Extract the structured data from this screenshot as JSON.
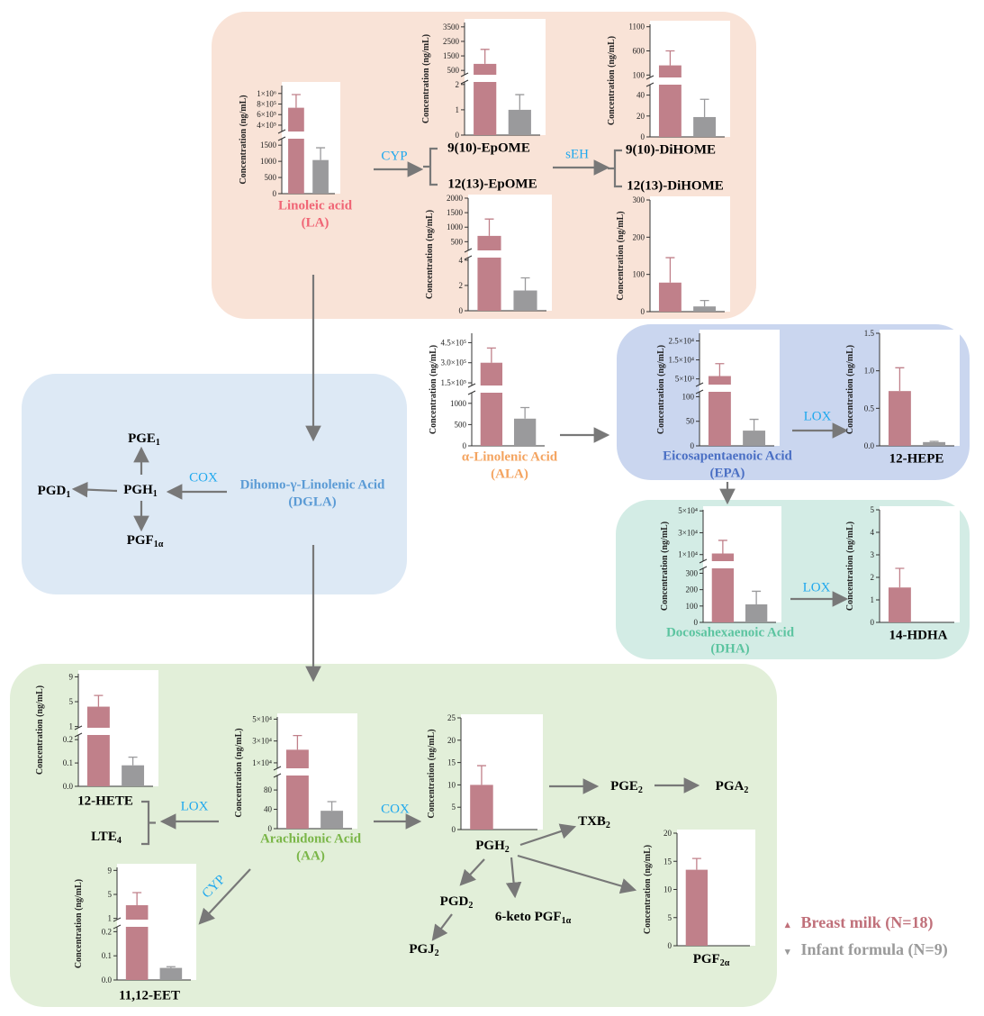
{
  "colors": {
    "breast_milk": "#c0808a",
    "infant_formula": "#9a9a9c",
    "enzyme": "#1ea8ee",
    "LA": "#f06575",
    "ALA": "#f4a460",
    "EPA": "#4a6fc4",
    "DHA": "#5cc4a0",
    "DGLA": "#5b9bd5",
    "AA": "#7ab648",
    "arrow": "#787878",
    "panel_LA": "#f9e3d7",
    "panel_DGLA": "#dde9f5",
    "panel_EPA": "#cad6ef",
    "panel_DHA": "#d3ece5",
    "panel_AA": "#e2efd9"
  },
  "labels": {
    "LA_1": "Linoleic  acid",
    "LA_2": "(LA)",
    "cyp1": "CYP",
    "epome9": "9(10)-EpOME",
    "epome12": "12(13)-EpOME",
    "seh": "sEH",
    "dihome9": "9(10)-DiHOME",
    "dihome12": "12(13)-DiHOME",
    "ALA_1": "α-Linolenic  Acid",
    "ALA_2": "(ALA)",
    "EPA_1": "Eicosapentaenoic  Acid",
    "EPA_2": "(EPA)",
    "lox1": "LOX",
    "hepe": "12-HEPE",
    "DHA_1": "Docosahexaenoic Acid",
    "DHA_2": "(DHA)",
    "lox2": "LOX",
    "hdha": "14-HDHA",
    "DGLA_1": "Dihomo-γ-Linolenic  Acid",
    "DGLA_2": "(DGLA)",
    "cox1": "COX",
    "pgh1": "PGH",
    "pgh1_sub": "1",
    "pge1": "PGE",
    "pge1_sub": "1",
    "pgd1": "PGD",
    "pgd1_sub": "1",
    "pgf1a": "PGF",
    "pgf1a_sub": "1α",
    "hete": "12-HETE",
    "lte4": "LTE",
    "lte4_sub": "4",
    "lox3": "LOX",
    "AA_1": "Arachidonic  Acid",
    "AA_2": "(AA)",
    "cox2": "COX",
    "cyp2": "CYP",
    "eet": "11,12-EET",
    "pgh2": "PGH",
    "pgh2_sub": "2",
    "pge2": "PGE",
    "pge2_sub": "2",
    "pga2": "PGA",
    "pga2_sub": "2",
    "txb2": "TXB",
    "txb2_sub": "2",
    "pgd2": "PGD",
    "pgd2_sub": "2",
    "keto": "6-keto PGF",
    "keto_sub": "1α",
    "pgj2": "PGJ",
    "pgj2_sub": "2",
    "pgf2a": "PGF",
    "pgf2a_sub": "2α"
  },
  "legend": {
    "breast_milk": "Breast milk (N=18)",
    "infant_formula": "Infant formula (N=9)",
    "breast_marker": "▴",
    "formula_marker": "▾"
  },
  "chart_data": [
    {
      "type": "bar",
      "compound": "LA",
      "ylabel": "Concentration (ng/mL)",
      "upper": {
        "range": [
          280000,
          1150000
        ],
        "ticks": [
          400000,
          600000,
          800000,
          1000000
        ],
        "tick_labels": [
          "4×10⁵",
          "6×10⁵",
          "8×10⁵",
          "1×10⁶"
        ]
      },
      "lower": {
        "range": [
          0,
          1700
        ],
        "ticks": [
          0,
          500,
          1000,
          1500
        ],
        "tick_labels": [
          "0",
          "500",
          "1000",
          "1500"
        ]
      },
      "series": [
        {
          "name": "Breast milk (N=18)",
          "mean": 730000,
          "sd_top": 980000
        },
        {
          "name": "Infant formula (N=9)",
          "mean": 1040,
          "sd_top": 1420
        }
      ]
    },
    {
      "type": "bar",
      "compound": "9(10)-EpOME",
      "ylabel": "Concentration (ng/mL)",
      "upper": {
        "range": [
          200,
          3800
        ],
        "ticks": [
          500,
          1500,
          2500,
          3500
        ],
        "tick_labels": [
          "500",
          "1500",
          "2500",
          "3500"
        ]
      },
      "lower": {
        "range": [
          0,
          2.1
        ],
        "ticks": [
          0,
          1,
          2
        ],
        "tick_labels": [
          "0",
          "1",
          "2"
        ]
      },
      "series": [
        {
          "name": "Breast milk (N=18)",
          "mean": 950,
          "sd_top": 1950
        },
        {
          "name": "Infant formula (N=9)",
          "mean": 1.0,
          "sd_top": 1.6
        }
      ]
    },
    {
      "type": "bar",
      "compound": "12(13)-EpOME",
      "ylabel": "Concentration (ng/mL)",
      "upper": {
        "range": [
          200,
          2000
        ],
        "ticks": [
          500,
          1000,
          1500,
          2000
        ],
        "tick_labels": [
          "500",
          "1000",
          "1500",
          "2000"
        ]
      },
      "lower": {
        "range": [
          0,
          4.2
        ],
        "ticks": [
          0,
          2,
          4
        ],
        "tick_labels": [
          "0",
          "2",
          "4"
        ]
      },
      "series": [
        {
          "name": "Breast milk (N=18)",
          "mean": 700,
          "sd_top": 1280
        },
        {
          "name": "Infant formula (N=9)",
          "mean": 1.6,
          "sd_top": 2.6
        }
      ]
    },
    {
      "type": "bar",
      "compound": "9(10)-DiHOME",
      "ylabel": "Concentration (ng/mL)",
      "upper": {
        "range": [
          50,
          1150
        ],
        "ticks": [
          100,
          600,
          1100
        ],
        "tick_labels": [
          "100",
          "600",
          "1100"
        ]
      },
      "lower": {
        "range": [
          0,
          50
        ],
        "ticks": [
          0,
          20,
          40
        ],
        "tick_labels": [
          "0",
          "20",
          "40"
        ]
      },
      "series": [
        {
          "name": "Breast milk (N=18)",
          "mean": 300,
          "sd_top": 600
        },
        {
          "name": "Infant formula (N=9)",
          "mean": 19,
          "sd_top": 36
        }
      ]
    },
    {
      "type": "bar",
      "compound": "12(13)-DiHOME",
      "ylabel": "Concentration (ng/mL)",
      "lower": {
        "range": [
          0,
          300
        ],
        "ticks": [
          0,
          100,
          200,
          300
        ],
        "tick_labels": [
          "0",
          "100",
          "200",
          "300"
        ]
      },
      "series": [
        {
          "name": "Breast milk (N=18)",
          "mean": 78,
          "sd_top": 145
        },
        {
          "name": "Infant formula (N=9)",
          "mean": 14,
          "sd_top": 30
        }
      ]
    },
    {
      "type": "bar",
      "compound": "ALA",
      "ylabel": "Concentration (ng/mL)",
      "upper": {
        "range": [
          130000,
          520000
        ],
        "ticks": [
          150000,
          300000,
          450000
        ],
        "tick_labels": [
          "1.5×10⁵",
          "3.0×10⁵",
          "4.5×10⁵"
        ]
      },
      "lower": {
        "range": [
          0,
          1250
        ],
        "ticks": [
          0,
          500,
          1000
        ],
        "tick_labels": [
          "0",
          "500",
          "1000"
        ]
      },
      "series": [
        {
          "name": "Breast milk (N=18)",
          "mean": 300000,
          "sd_top": 410000
        },
        {
          "name": "Infant formula (N=9)",
          "mean": 640,
          "sd_top": 900
        }
      ]
    },
    {
      "type": "bar",
      "compound": "EPA",
      "ylabel": "Concentration (ng/mL)",
      "upper": {
        "range": [
          2000,
          29000
        ],
        "ticks": [
          5000,
          15000,
          25000
        ],
        "tick_labels": [
          "5×10³",
          "1.5×10⁴",
          "2.5×10⁴"
        ]
      },
      "lower": {
        "range": [
          0,
          110
        ],
        "ticks": [
          0,
          50,
          100
        ],
        "tick_labels": [
          "0",
          "50",
          "100"
        ]
      },
      "series": [
        {
          "name": "Breast milk (N=18)",
          "mean": 6500,
          "sd_top": 13000
        },
        {
          "name": "Infant formula (N=9)",
          "mean": 31,
          "sd_top": 54
        }
      ]
    },
    {
      "type": "bar",
      "compound": "12-HEPE",
      "ylabel": "Concentration (ng/mL)",
      "lower": {
        "range": [
          0,
          1.5
        ],
        "ticks": [
          0,
          0.5,
          1.0,
          1.5
        ],
        "tick_labels": [
          "0.0",
          "0.5",
          "1.0",
          "1.5"
        ]
      },
      "series": [
        {
          "name": "Breast milk (N=18)",
          "mean": 0.73,
          "sd_top": 1.04
        },
        {
          "name": "Infant formula (N=9)",
          "mean": 0.05,
          "sd_top": 0.06
        }
      ]
    },
    {
      "type": "bar",
      "compound": "DHA",
      "ylabel": "Concentration (ng/mL)",
      "upper": {
        "range": [
          4000,
          51000
        ],
        "ticks": [
          10000,
          30000,
          50000
        ],
        "tick_labels": [
          "1×10⁴",
          "3×10⁴",
          "5×10⁴"
        ]
      },
      "lower": {
        "range": [
          0,
          330
        ],
        "ticks": [
          0,
          100,
          200,
          300
        ],
        "tick_labels": [
          "0",
          "100",
          "200",
          "300"
        ]
      },
      "series": [
        {
          "name": "Breast milk (N=18)",
          "mean": 11000,
          "sd_top": 23000
        },
        {
          "name": "Infant formula (N=9)",
          "mean": 110,
          "sd_top": 190
        }
      ]
    },
    {
      "type": "bar",
      "compound": "14-HDHA",
      "ylabel": "Concentration (ng/mL)",
      "lower": {
        "range": [
          0,
          5
        ],
        "ticks": [
          0,
          1,
          2,
          3,
          4,
          5
        ],
        "tick_labels": [
          "0",
          "1",
          "2",
          "3",
          "4",
          "5"
        ]
      },
      "series": [
        {
          "name": "Breast milk (N=18)",
          "mean": 1.55,
          "sd_top": 2.4
        }
      ]
    },
    {
      "type": "bar",
      "compound": "12-HETE",
      "ylabel": "Concentration (ng/mL)",
      "upper": {
        "range": [
          0.8,
          9.5
        ],
        "ticks": [
          1,
          5,
          9
        ],
        "tick_labels": [
          "1",
          "5",
          "9"
        ]
      },
      "lower": {
        "range": [
          0,
          0.22
        ],
        "ticks": [
          0,
          0.1,
          0.2
        ],
        "tick_labels": [
          "0.0",
          "0.1",
          "0.2"
        ]
      },
      "series": [
        {
          "name": "Breast milk (N=18)",
          "mean": 4.2,
          "sd_top": 6.0
        },
        {
          "name": "Infant formula (N=9)",
          "mean": 0.09,
          "sd_top": 0.125
        }
      ]
    },
    {
      "type": "bar",
      "compound": "AA",
      "ylabel": "Concentration (ng/mL)",
      "upper": {
        "range": [
          5000,
          52000
        ],
        "ticks": [
          10000,
          30000,
          50000
        ],
        "tick_labels": [
          "1×10⁴",
          "3×10⁴",
          "5×10⁴"
        ]
      },
      "lower": {
        "range": [
          0,
          110
        ],
        "ticks": [
          0,
          40,
          80
        ],
        "tick_labels": [
          "0",
          "40",
          "80"
        ]
      },
      "series": [
        {
          "name": "Breast milk (N=18)",
          "mean": 22000,
          "sd_top": 35000
        },
        {
          "name": "Infant formula (N=9)",
          "mean": 37,
          "sd_top": 56
        }
      ]
    },
    {
      "type": "bar",
      "compound": "PGH2",
      "ylabel": "Concentration (ng/mL)",
      "lower": {
        "range": [
          0,
          25
        ],
        "ticks": [
          0,
          5,
          10,
          15,
          20,
          25
        ],
        "tick_labels": [
          "0",
          "5",
          "10",
          "15",
          "20",
          "25"
        ]
      },
      "series": [
        {
          "name": "Breast milk (N=18)",
          "mean": 10,
          "sd_top": 14.3
        }
      ]
    },
    {
      "type": "bar",
      "compound": "PGF2α",
      "ylabel": "Concentration (ng/mL)",
      "lower": {
        "range": [
          0,
          20
        ],
        "ticks": [
          0,
          5,
          10,
          15,
          20
        ],
        "tick_labels": [
          "0",
          "5",
          "10",
          "15",
          "20"
        ]
      },
      "series": [
        {
          "name": "Breast milk (N=18)",
          "mean": 13.5,
          "sd_top": 15.5
        }
      ]
    },
    {
      "type": "bar",
      "compound": "11,12-EET",
      "ylabel": "Concentration (ng/mL)",
      "upper": {
        "range": [
          0.8,
          9.5
        ],
        "ticks": [
          1,
          5,
          9
        ],
        "tick_labels": [
          "1",
          "5",
          "9"
        ]
      },
      "lower": {
        "range": [
          0,
          0.22
        ],
        "ticks": [
          0,
          0.1,
          0.2
        ],
        "tick_labels": [
          "0.0",
          "0.1",
          "0.2"
        ]
      },
      "series": [
        {
          "name": "Breast milk (N=18)",
          "mean": 3.2,
          "sd_top": 5.3
        },
        {
          "name": "Infant formula (N=9)",
          "mean": 0.05,
          "sd_top": 0.055
        }
      ]
    }
  ]
}
